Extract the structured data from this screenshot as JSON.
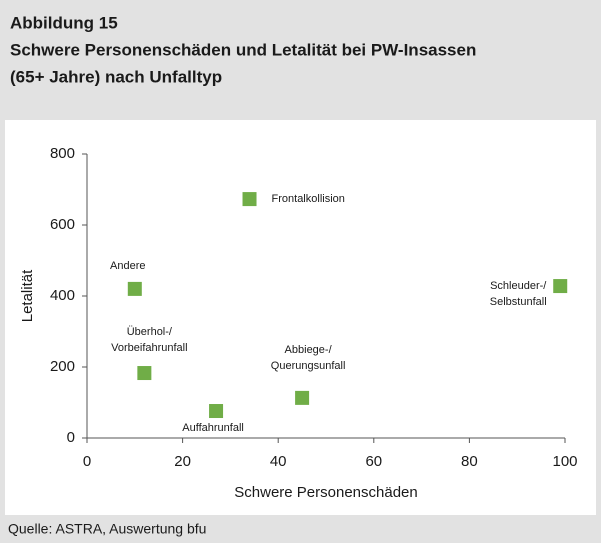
{
  "chart_data": {
    "type": "scatter",
    "title_lines": [
      "Abbildung 15",
      "Schwere Personenschäden und Letalität bei PW-Insassen",
      "(65+ Jahre) nach Unfalltyp"
    ],
    "xlabel": "Schwere Personenschäden",
    "ylabel": "Letalität",
    "source": "Quelle: ASTRA, Auswertung bfu",
    "color": "#70ad47",
    "x": [
      34,
      10,
      99,
      12,
      27,
      45
    ],
    "values": [
      673,
      420,
      428,
      183,
      76,
      113
    ],
    "point_labels": [
      [
        "Frontalkollision"
      ],
      [
        "Andere"
      ],
      [
        "Schleuder-/",
        "Selbstunfall"
      ],
      [
        "Überhol-/",
        "Vorbeifahrunfall"
      ],
      [
        "Auffahrunfall"
      ],
      [
        "Abbiege-/",
        "Querungsunfall"
      ]
    ],
    "xlim": [
      0,
      100
    ],
    "xticks": [
      0,
      20,
      40,
      60,
      80,
      100
    ],
    "ylim": [
      0,
      800
    ],
    "yticks": [
      0,
      200,
      400,
      600,
      800
    ],
    "grid": false
  }
}
